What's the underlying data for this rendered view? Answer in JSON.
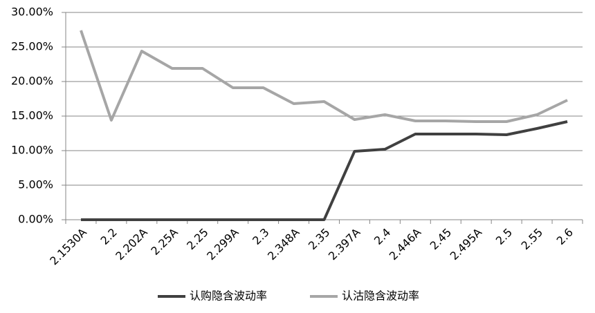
{
  "chart_data": {
    "type": "line",
    "categories": [
      "2.1530A",
      "2.2",
      "2.202A",
      "2.25A",
      "2.25",
      "2.299A",
      "2.3",
      "2.348A",
      "2.35",
      "2.397A",
      "2.4",
      "2.446A",
      "2.45",
      "2.495A",
      "2.5",
      "2.55",
      "2.6"
    ],
    "series": [
      {
        "name": "认购隐含波动率",
        "color": "#404040",
        "values": [
          0,
          0,
          0,
          0,
          0,
          0,
          0,
          0,
          0,
          9.9,
          10.2,
          12.4,
          12.4,
          12.4,
          12.3,
          13.2,
          14.2
        ]
      },
      {
        "name": "认沽隐含波动率",
        "color": "#a6a6a6",
        "values": [
          27.4,
          14.4,
          24.4,
          21.9,
          21.9,
          19.1,
          19.1,
          16.8,
          17.1,
          14.5,
          15.2,
          14.3,
          14.3,
          14.2,
          14.2,
          15.2,
          17.3
        ]
      }
    ],
    "ylim": [
      0,
      30
    ],
    "yticks": [
      {
        "value": 0,
        "label": "0.00%"
      },
      {
        "value": 5,
        "label": "5.00%"
      },
      {
        "value": 10,
        "label": "10.00%"
      },
      {
        "value": 15,
        "label": "15.00%"
      },
      {
        "value": 20,
        "label": "20.00%"
      },
      {
        "value": 25,
        "label": "25.00%"
      },
      {
        "value": 30,
        "label": "30.00%"
      }
    ],
    "grid": true,
    "legend": "bottom"
  }
}
